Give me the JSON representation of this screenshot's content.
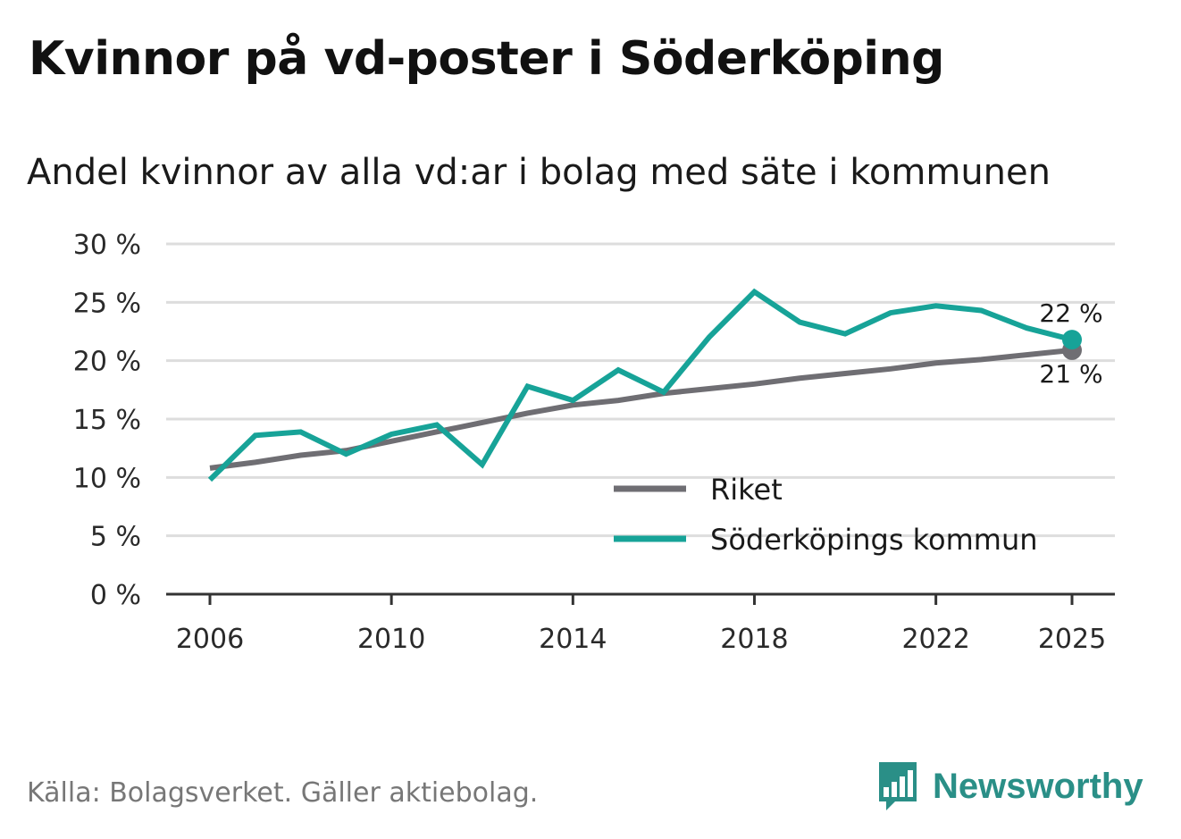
{
  "title": "Kvinnor på vd-poster i Söderköping",
  "subtitle": "Andel kvinnor av alla vd:ar i bolag med säte i kommunen",
  "source": "Källa: Bolagsverket. Gäller aktiebolag.",
  "brand": "Newsworthy",
  "colors": {
    "riket": "#6f6e73",
    "kommun": "#17a398",
    "grid": "#dddddd",
    "axis": "#333333",
    "brand": "#2a8f87"
  },
  "chart_data": {
    "type": "line",
    "title": "Kvinnor på vd-poster i Söderköping",
    "xlabel": "",
    "ylabel": "",
    "ylim": [
      0,
      30
    ],
    "yticks": [
      0,
      5,
      10,
      15,
      20,
      25,
      30
    ],
    "ytick_labels": [
      "0 %",
      "5 %",
      "10 %",
      "15 %",
      "20 %",
      "25 %",
      "30 %"
    ],
    "xlim": [
      2005,
      2026
    ],
    "xticks": [
      2006,
      2010,
      2014,
      2018,
      2022,
      2025
    ],
    "xtick_labels": [
      "2006",
      "2010",
      "2014",
      "2018",
      "2022",
      "2025"
    ],
    "x": [
      2006,
      2007,
      2008,
      2009,
      2010,
      2011,
      2012,
      2013,
      2014,
      2015,
      2016,
      2017,
      2018,
      2019,
      2020,
      2021,
      2022,
      2023,
      2024,
      2025
    ],
    "series": [
      {
        "name": "Riket",
        "key": "riket",
        "values": [
          10.8,
          11.3,
          11.9,
          12.3,
          13.1,
          13.9,
          14.7,
          15.5,
          16.2,
          16.6,
          17.2,
          17.6,
          18.0,
          18.5,
          18.9,
          19.3,
          19.8,
          20.1,
          20.5,
          20.9
        ],
        "end_label": "21 %"
      },
      {
        "name": "Söderköpings kommun",
        "key": "kommun",
        "values": [
          9.8,
          13.6,
          13.9,
          12.0,
          13.7,
          14.5,
          11.1,
          17.8,
          16.6,
          19.2,
          17.3,
          22.0,
          25.9,
          23.3,
          22.3,
          24.1,
          24.7,
          24.3,
          22.8,
          21.8
        ],
        "end_label": "22 %"
      }
    ],
    "legend": [
      "Riket",
      "Söderköpings kommun"
    ],
    "legend_position": "bottom-right",
    "grid": true
  }
}
